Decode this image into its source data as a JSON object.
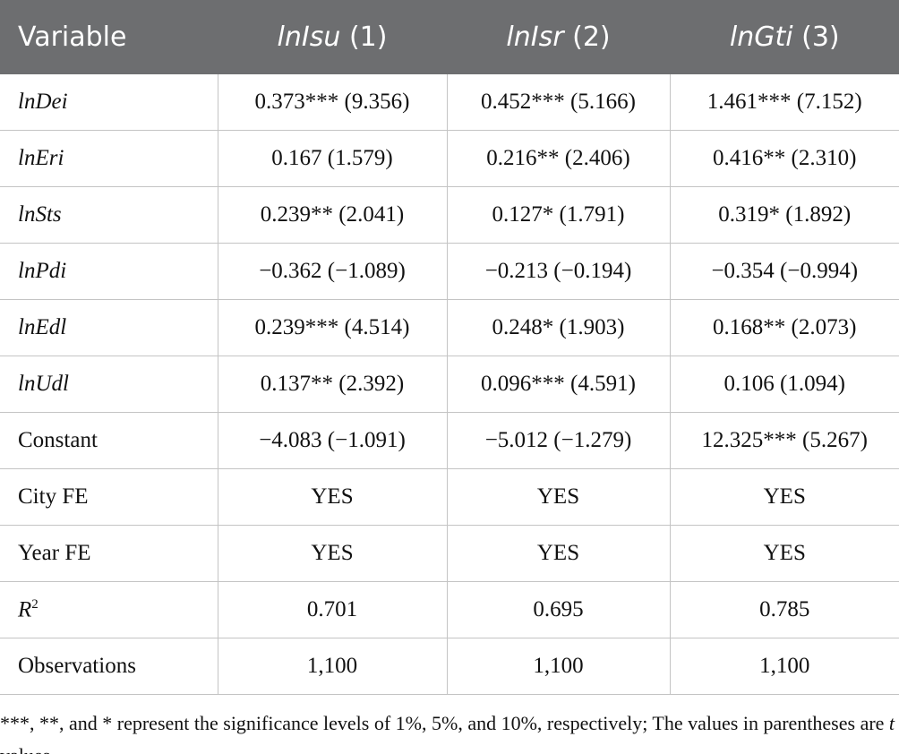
{
  "table": {
    "header": [
      "Variable",
      {
        "name": "lnIsu",
        "num": "(1)"
      },
      {
        "name": "lnIsr",
        "num": "(2)"
      },
      {
        "name": "lnGti",
        "num": "(3)"
      }
    ],
    "rows": [
      {
        "variable": "lnDei",
        "italic": true,
        "values": [
          "0.373*** (9.356)",
          "0.452*** (5.166)",
          "1.461*** (7.152)"
        ]
      },
      {
        "variable": "lnEri",
        "italic": true,
        "values": [
          "0.167 (1.579)",
          "0.216** (2.406)",
          "0.416** (2.310)"
        ]
      },
      {
        "variable": "lnSts",
        "italic": true,
        "values": [
          "0.239** (2.041)",
          "0.127* (1.791)",
          "0.319* (1.892)"
        ]
      },
      {
        "variable": "lnPdi",
        "italic": true,
        "values": [
          "−0.362 (−1.089)",
          "−0.213 (−0.194)",
          "−0.354 (−0.994)"
        ]
      },
      {
        "variable": "lnEdl",
        "italic": true,
        "values": [
          "0.239*** (4.514)",
          "0.248* (1.903)",
          "0.168** (2.073)"
        ]
      },
      {
        "variable": "lnUdl",
        "italic": true,
        "values": [
          "0.137** (2.392)",
          "0.096*** (4.591)",
          "0.106 (1.094)"
        ]
      },
      {
        "variable": "Constant",
        "italic": false,
        "values": [
          "−4.083 (−1.091)",
          "−5.012 (−1.279)",
          "12.325*** (5.267)"
        ]
      },
      {
        "variable": "City FE",
        "italic": false,
        "values": [
          "YES",
          "YES",
          "YES"
        ]
      },
      {
        "variable": "Year FE",
        "italic": false,
        "values": [
          "YES",
          "YES",
          "YES"
        ]
      },
      {
        "variable": "R",
        "sup": "2",
        "italic": true,
        "values": [
          "0.701",
          "0.695",
          "0.785"
        ]
      },
      {
        "variable": "Observations",
        "italic": false,
        "values": [
          "1,100",
          "1,100",
          "1,100"
        ]
      }
    ]
  },
  "note": [
    "***, **, and * represent the significance levels of 1%, 5%, and 10%, respectively; The values in parentheses are ",
    "t",
    " values."
  ]
}
